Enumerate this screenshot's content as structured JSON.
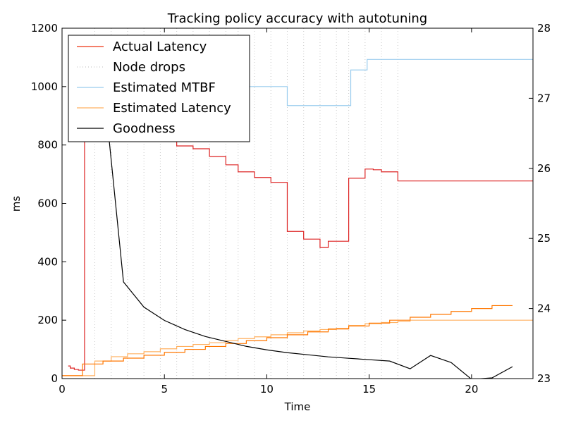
{
  "chart_data": {
    "type": "line",
    "title": "Tracking policy accuracy with autotuning",
    "xlabel": "Time",
    "ylabel": "ms",
    "y2label": "",
    "xlim": [
      0,
      23
    ],
    "ylim": [
      0,
      1200
    ],
    "y2lim": [
      23,
      28
    ],
    "x_ticks": [
      "0",
      "5",
      "10",
      "15",
      "20"
    ],
    "y_ticks": [
      "0",
      "200",
      "400",
      "600",
      "800",
      "1000",
      "1200"
    ],
    "y2_ticks": [
      "23",
      "24",
      "25",
      "26",
      "27",
      "28"
    ],
    "legend_position": "upper-left",
    "legend": [
      {
        "label": "Actual Latency",
        "color": "#ee3311",
        "style": "solid"
      },
      {
        "label": "Node drops",
        "color": "#bbbbbb",
        "style": "dotted"
      },
      {
        "label": "Estimated MTBF",
        "color": "#99ccee",
        "style": "solid"
      },
      {
        "label": "Estimated Latency",
        "color": "#ffb060",
        "style": "solid"
      },
      {
        "label": "Goodness",
        "color": "#000000",
        "style": "solid"
      }
    ],
    "node_drops_x": [
      1.6,
      2.4,
      3.2,
      4.0,
      4.8,
      5.6,
      6.4,
      7.2,
      8.0,
      8.6,
      9.4,
      10.2,
      11.0,
      11.8,
      12.6,
      13.4,
      14.0,
      14.8,
      15.6,
      16.4
    ],
    "series": [
      {
        "name": "Actual Latency",
        "axis": "y2",
        "color": "#dd2222",
        "step": true,
        "x": [
          0.3,
          0.4,
          0.6,
          0.8,
          1.1,
          1.3,
          1.6,
          2.4,
          2.9,
          3.2,
          4.0,
          4.8,
          5.6,
          6.4,
          7.2,
          8.0,
          8.6,
          9.4,
          10.2,
          11.0,
          11.8,
          12.6,
          13.0,
          14.0,
          14.8,
          15.2,
          15.6,
          16.4,
          23.0
        ],
        "values": [
          23.18,
          23.15,
          23.13,
          23.12,
          27.8,
          27.8,
          27.05,
          26.8,
          26.7,
          26.6,
          26.45,
          26.42,
          26.32,
          26.28,
          26.17,
          26.05,
          25.95,
          25.87,
          25.8,
          25.1,
          24.99,
          24.87,
          24.96,
          25.86,
          25.99,
          25.98,
          25.95,
          25.82,
          25.82
        ]
      },
      {
        "name": "Estimated MTBF",
        "axis": "y",
        "color": "#99ccee",
        "step": true,
        "x": [
          8.8,
          11.0,
          14.1,
          14.9,
          23.0
        ],
        "values": [
          1000,
          935,
          1057,
          1093,
          1093
        ]
      },
      {
        "name": "Estimated Latency",
        "axis": "y",
        "color": "#ffb060",
        "step": true,
        "x": [
          0.0,
          1.6,
          2.4,
          3.2,
          4.0,
          4.8,
          5.6,
          6.4,
          7.2,
          8.0,
          8.6,
          9.4,
          10.2,
          11.0,
          11.8,
          12.6,
          13.4,
          14.0,
          14.8,
          15.6,
          16.4,
          17.0,
          23.0
        ],
        "values": [
          10,
          60,
          75,
          85,
          92,
          102,
          110,
          117,
          123,
          130,
          137,
          143,
          150,
          157,
          163,
          168,
          172,
          182,
          188,
          192,
          196,
          200,
          200
        ]
      },
      {
        "name": "Actual Latency",
        "axis": "y",
        "color": "#ff7700",
        "step": true,
        "x": [
          0.0,
          1.0,
          2.0,
          3.0,
          4.0,
          5.0,
          6.0,
          7.0,
          8.0,
          9.0,
          10.0,
          11.0,
          12.0,
          13.0,
          14.0,
          15.0,
          16.0,
          17.0,
          18.0,
          19.0,
          20.0,
          21.0,
          22.0
        ],
        "values": [
          10,
          50,
          60,
          70,
          80,
          90,
          100,
          110,
          120,
          130,
          140,
          150,
          160,
          170,
          180,
          190,
          200,
          210,
          220,
          230,
          240,
          250,
          250
        ]
      },
      {
        "name": "Goodness",
        "axis": "y2",
        "color": "#000000",
        "step": false,
        "x": [
          2.2,
          3.0,
          4.0,
          5.0,
          6.0,
          7.0,
          8.0,
          9.0,
          10.0,
          11.0,
          12.0,
          13.0,
          14.0,
          15.0,
          16.0,
          17.0,
          18.0,
          19.0,
          20.0,
          21.0,
          22.0
        ],
        "values": [
          26.7,
          24.38,
          24.02,
          23.83,
          23.7,
          23.6,
          23.53,
          23.46,
          23.41,
          23.37,
          23.34,
          23.31,
          23.29,
          23.27,
          23.25,
          23.14,
          23.33,
          23.23,
          22.99,
          23.01,
          23.17
        ]
      }
    ]
  }
}
